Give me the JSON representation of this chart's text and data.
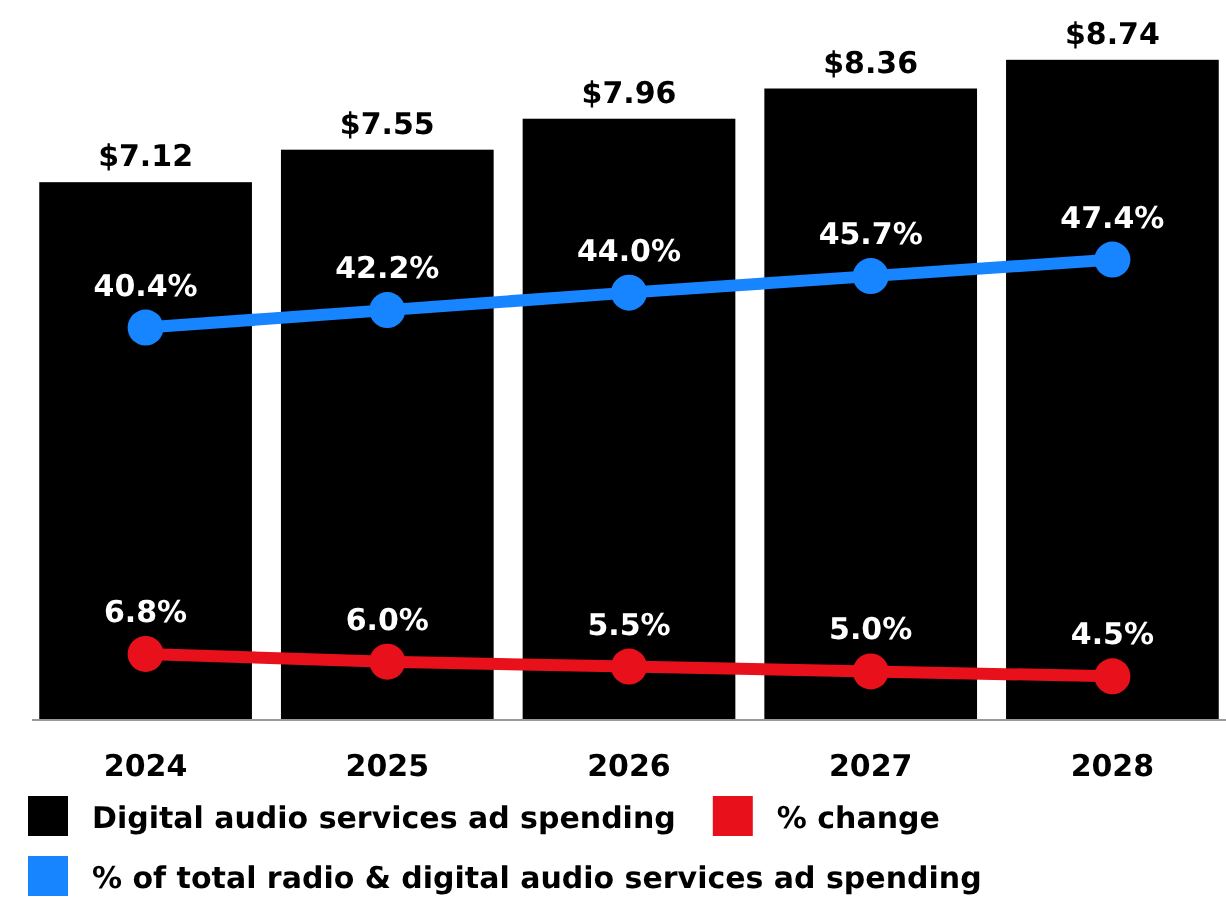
{
  "chart_data": {
    "type": "bar",
    "categories": [
      "2024",
      "2025",
      "2026",
      "2027",
      "2028"
    ],
    "tick_labels": "x",
    "legend": "bottom",
    "marker": "circle",
    "series": [
      {
        "name": "Digital audio services ad spending",
        "color": "#000000",
        "values": [
          7.12,
          7.55,
          7.96,
          8.36,
          8.74
        ],
        "value_labels": [
          "$7.12",
          "$7.55",
          "$7.96",
          "$8.36",
          "$8.74"
        ]
      },
      {
        "name": "% change",
        "type": "line",
        "axis": "y2",
        "color": "#e8111b",
        "values": [
          6.8,
          6.0,
          5.5,
          5.0,
          4.5
        ],
        "value_labels": [
          "6.8%",
          "6.0%",
          "5.5%",
          "5.0%",
          "4.5%"
        ]
      },
      {
        "name": "% of total radio & digital audio services ad spending",
        "type": "line",
        "axis": "y2",
        "color": "#1685ff",
        "values": [
          40.4,
          42.2,
          44.0,
          45.7,
          47.4
        ],
        "value_labels": [
          "40.4%",
          "42.2%",
          "44.0%",
          "45.7%",
          "47.4%"
        ]
      }
    ]
  }
}
